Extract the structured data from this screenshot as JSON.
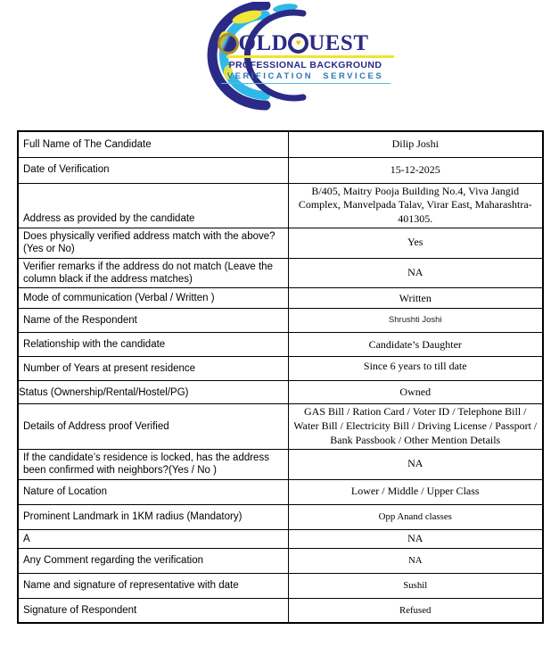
{
  "logo": {
    "brand_g": "G",
    "brand_old": "OLD",
    "brand_q": "Q",
    "brand_uest": "UEST",
    "heart": "♥",
    "tagline1": "PROFESSIONAL BACKGROUND",
    "tagline2": "VERIFICATION SERVICES",
    "colors": {
      "navy": "#2b2a86",
      "cyan": "#2fb9e9",
      "yellow": "#f2e636",
      "gold": "#a8912f",
      "tagline_blue": "#2e74b5"
    }
  },
  "table": {
    "rows": [
      {
        "label": "Full Name of The Candidate",
        "value": "Dilip Joshi"
      },
      {
        "label": "Date of Verification",
        "value": "15-12-2025"
      },
      {
        "label": "Address as provided by the candidate",
        "value": "B/405, Maitry Pooja Building No.4, Viva Jangid Complex, Manvelpada Talav, Virar East, Maharashtra-401305.",
        "lc": "vbottom"
      },
      {
        "label": "Does physically verified address match with the above? (Yes or No)",
        "value": "Yes"
      },
      {
        "label": "Verifier remarks if the address do not match (Leave the column black if the address matches)",
        "value": "NA"
      },
      {
        "label": "Mode of communication (Verbal / Written )",
        "value": "Written"
      },
      {
        "label": "Name of the Respondent",
        "value": "Shrushti Joshi",
        "vc": "sans"
      },
      {
        "label": "Relationship with the candidate",
        "value": "Candidate’s Daughter"
      },
      {
        "label": "Number of Years at present residence",
        "value": "Since 6 years to till date",
        "vc": "vtop"
      },
      {
        "label": "Status (Ownership/Rental/Hostel/PG)",
        "value": "Owned",
        "lc": "flush"
      },
      {
        "label": "Details of Address proof Verified",
        "value": "GAS Bill / Ration Card / Voter ID / Telephone Bill / Water Bill / Electricity Bill / Driving License / Passport / Bank Passbook / Other Mention Details"
      },
      {
        "label": "If the candidate’s residence is locked, has the address been confirmed with neighbors?(Yes / No )",
        "value": "NA"
      },
      {
        "label": "Nature of Location",
        "value": "Lower / Middle / Upper Class"
      },
      {
        "label": "Prominent Landmark in 1KM radius (Mandatory)",
        "value": "Opp Anand classes",
        "vc": "sm"
      },
      {
        "label": "A",
        "value": "NA"
      },
      {
        "label": "Any Comment regarding the verification",
        "value": "NA",
        "vc": "sm"
      },
      {
        "label": "Name and signature of representative with date",
        "value": "Sushil",
        "vc": "sm"
      },
      {
        "label": "Signature of Respondent",
        "value": "Refused",
        "vc": "sm"
      }
    ]
  }
}
